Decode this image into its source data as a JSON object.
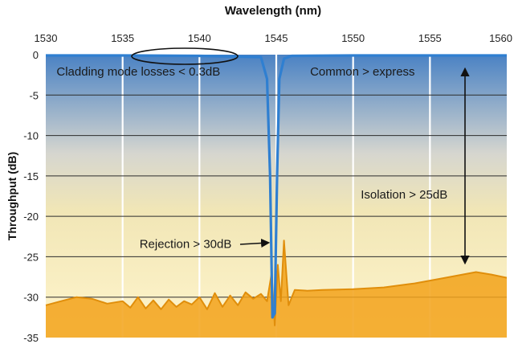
{
  "chart_data": {
    "type": "line",
    "title": "Wavelength (nm)",
    "xlabel": "",
    "ylabel": "Throughput (dB)",
    "xlim": [
      1530,
      1560
    ],
    "ylim": [
      -35,
      0
    ],
    "xticks": [
      "1530",
      "1535",
      "1540",
      "1545",
      "1550",
      "1555",
      "1560"
    ],
    "yticks": [
      "0",
      "-5",
      "-10",
      "-15",
      "-20",
      "-25",
      "-30",
      "-35"
    ],
    "grid": true,
    "colors": {
      "express": "#2f7fd1",
      "isolation": "#f2a21a",
      "bg_top": "#4a82c4",
      "bg_mid": "#e9e3c0",
      "bg_bottom": "#fff4c8"
    },
    "series": [
      {
        "role": "express",
        "x": [
          1530,
          1535,
          1540,
          1544.0,
          1544.4,
          1544.6,
          1544.75,
          1544.9,
          1545.05,
          1545.2,
          1545.5,
          1546,
          1550,
          1555,
          1560
        ],
        "y": [
          -0.1,
          -0.1,
          -0.15,
          -0.3,
          -3,
          -15,
          -32.5,
          -32,
          -15,
          -3,
          -0.5,
          -0.15,
          -0.1,
          -0.1,
          -0.1
        ]
      },
      {
        "role": "isolation",
        "x": [
          1530,
          1531,
          1532,
          1533,
          1534,
          1535,
          1535.5,
          1536,
          1536.5,
          1537,
          1537.5,
          1538,
          1538.5,
          1539,
          1539.5,
          1540,
          1540.5,
          1541,
          1541.5,
          1542,
          1542.5,
          1543,
          1543.5,
          1544,
          1544.4,
          1544.7,
          1544.9,
          1545.1,
          1545.3,
          1545.5,
          1545.8,
          1546.2,
          1547,
          1548,
          1550,
          1552,
          1554,
          1556,
          1558,
          1559,
          1560
        ],
        "y": [
          -31,
          -30.5,
          -30,
          -30.2,
          -30.8,
          -30.5,
          -31.3,
          -30,
          -31.4,
          -30.4,
          -31.5,
          -30.3,
          -31.2,
          -30.5,
          -30.9,
          -30,
          -31.5,
          -29.5,
          -31.2,
          -29.8,
          -31,
          -29.4,
          -30.2,
          -29.6,
          -30.5,
          -27,
          -33.5,
          -26,
          -30.5,
          -23,
          -31,
          -29.1,
          -29.2,
          -29.1,
          -29,
          -28.8,
          -28.3,
          -27.6,
          -26.9,
          -27.2,
          -27.6
        ]
      }
    ],
    "annotations": [
      {
        "text": "Cladding mode losses < 0.3dB",
        "x": 1530.7,
        "y": -2.6
      },
      {
        "text": "Common > express",
        "x": 1547.2,
        "y": -2.6
      },
      {
        "text": "Isolation > 25dB",
        "x": 1550.5,
        "y": -17.8
      },
      {
        "text": "Rejection > 30dB",
        "x": 1536.1,
        "y": -23.9
      }
    ]
  }
}
